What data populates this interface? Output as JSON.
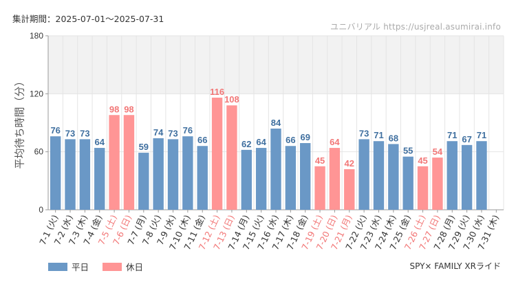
{
  "header": {
    "period": "集計期間：2025-07-01～2025-07-31",
    "watermark": "ユニバリアル  https://usjreal.asumirai.info"
  },
  "footer": {
    "attraction": "SPY× FAMILY XRライド"
  },
  "colors": {
    "weekday": "#6a98c6",
    "holiday": "#ff9595",
    "weekday_text": "#3f6f9f",
    "holiday_text": "#f27777",
    "band": "#f2f2f2",
    "grid": "#e4e4e4"
  },
  "chart_data": {
    "type": "bar",
    "title": "",
    "ylabel": "平均待ち時間（分）",
    "xlabel": "",
    "ylim": [
      0,
      180
    ],
    "yticks": [
      0,
      60,
      120,
      180
    ],
    "shaded_band": [
      120,
      180
    ],
    "legend": [
      {
        "name": "平日",
        "color_key": "weekday"
      },
      {
        "name": "休日",
        "color_key": "holiday"
      }
    ],
    "legend_position": "bottom-left",
    "categories": [
      "7-1 (火)",
      "7-2 (水)",
      "7-3 (木)",
      "7-4 (金)",
      "7-5 (土)",
      "7-6 (日)",
      "7-7 (月)",
      "7-8 (火)",
      "7-9 (水)",
      "7-10 (木)",
      "7-11 (金)",
      "7-12 (土)",
      "7-13 (日)",
      "7-14 (月)",
      "7-15 (火)",
      "7-16 (水)",
      "7-17 (木)",
      "7-18 (金)",
      "7-19 (土)",
      "7-20 (日)",
      "7-21 (月)",
      "7-22 (火)",
      "7-23 (水)",
      "7-24 (木)",
      "7-25 (金)",
      "7-26 (土)",
      "7-27 (日)",
      "7-28 (月)",
      "7-29 (火)",
      "7-30 (水)",
      "7-31 (木)"
    ],
    "values": [
      76,
      73,
      73,
      64,
      98,
      98,
      59,
      74,
      73,
      76,
      66,
      116,
      108,
      62,
      64,
      84,
      66,
      69,
      45,
      64,
      42,
      73,
      71,
      68,
      55,
      45,
      54,
      71,
      67,
      71,
      null
    ],
    "holiday": [
      false,
      false,
      false,
      false,
      true,
      true,
      false,
      false,
      false,
      false,
      false,
      true,
      true,
      false,
      false,
      false,
      false,
      false,
      true,
      true,
      true,
      false,
      false,
      false,
      false,
      true,
      true,
      false,
      false,
      false,
      false
    ]
  }
}
